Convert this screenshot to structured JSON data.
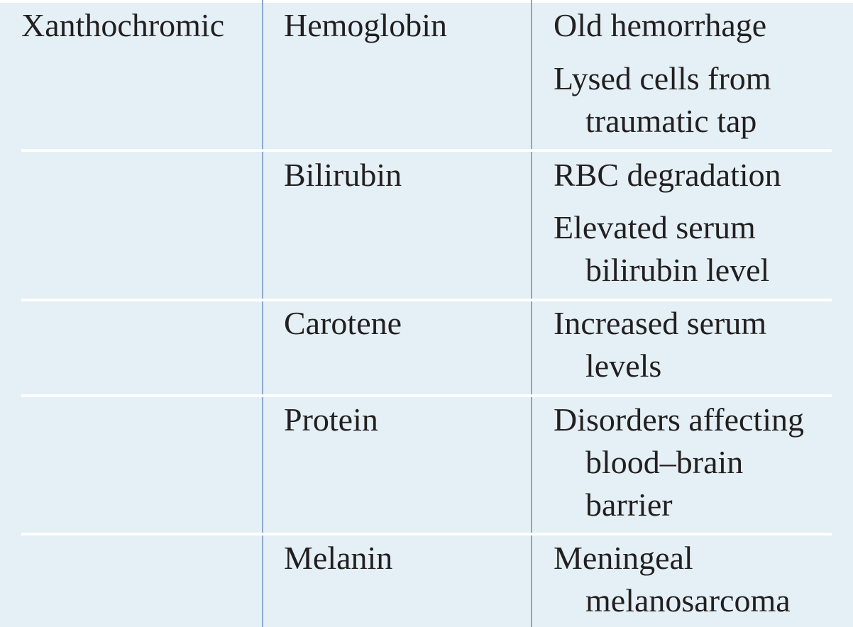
{
  "table": {
    "col1_label": "Xanthochromic",
    "rows": [
      {
        "pigment": "Hemoglobin",
        "causes": [
          [
            "Old hemorrhage"
          ],
          [
            "Lysed cells from",
            "traumatic tap"
          ]
        ]
      },
      {
        "pigment": "Bilirubin",
        "causes": [
          [
            "RBC degradation"
          ],
          [
            "Elevated serum",
            "bilirubin level"
          ]
        ]
      },
      {
        "pigment": "Carotene",
        "causes": [
          [
            "Increased serum",
            "levels"
          ]
        ]
      },
      {
        "pigment": "Protein",
        "causes": [
          [
            "Disorders affecting",
            "blood–brain",
            "barrier"
          ]
        ]
      },
      {
        "pigment": "Melanin",
        "causes": [
          [
            "Meningeal",
            "melanosarcoma"
          ]
        ]
      }
    ]
  },
  "colors": {
    "background": "#e4f0f5",
    "column_rule": "#8aa8cc",
    "row_rule": "#ffffff",
    "text": "#231f20"
  }
}
